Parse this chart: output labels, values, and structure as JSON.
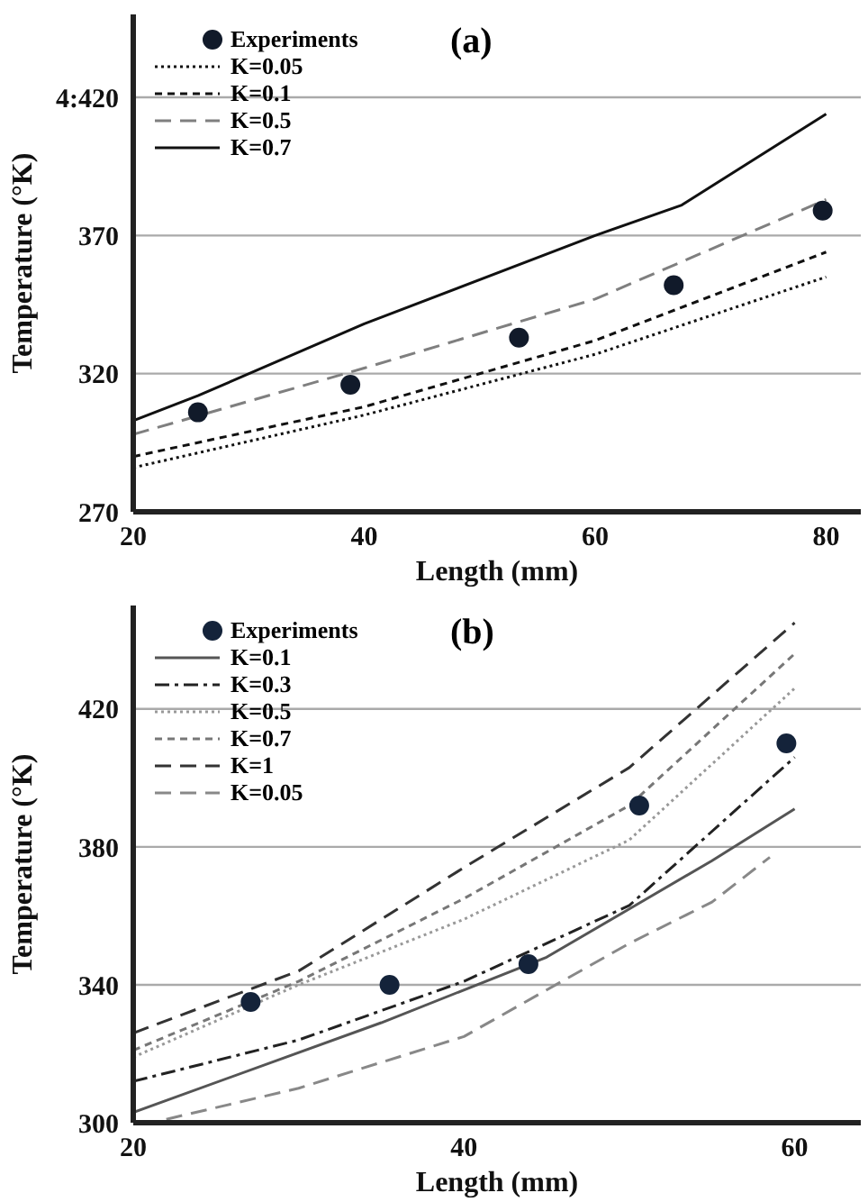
{
  "chart_data": [
    {
      "type": "line",
      "title": "(a)",
      "xlabel": "Length (mm)",
      "ylabel": "Temperature (°K)",
      "xlim": [
        20,
        83
      ],
      "ylim": [
        270,
        450
      ],
      "xticks": [
        20,
        40,
        60,
        80
      ],
      "yticks": [
        270,
        320,
        370,
        {
          "value": 420,
          "label": "4:420"
        }
      ],
      "grid": "y",
      "legend": "top left",
      "series": [
        {
          "name": "Experiments",
          "type": "scatter",
          "marker": "circle",
          "color": "#111a2a",
          "x": [
            25.6,
            38.8,
            53.4,
            66.8,
            79.7
          ],
          "values": [
            306,
            316,
            333,
            352,
            379
          ]
        },
        {
          "name": "K=0.05",
          "line_style": "dotted",
          "color": "#111111",
          "x": [
            20,
            40,
            60,
            80
          ],
          "values": [
            286,
            305,
            327,
            355
          ]
        },
        {
          "name": "K=0.1",
          "line_style": "dashed",
          "color": "#111111",
          "x": [
            20,
            40,
            60,
            80
          ],
          "values": [
            290,
            308,
            332,
            364
          ]
        },
        {
          "name": "K=0.5",
          "line_style": "longdashed",
          "color": "#7f7f7f",
          "x": [
            20,
            40,
            60,
            80
          ],
          "values": [
            298,
            322,
            347,
            383
          ]
        },
        {
          "name": "K=0.7",
          "line_style": "solid",
          "color": "#111111",
          "x": [
            20,
            25.6,
            40,
            60,
            67.5,
            80
          ],
          "values": [
            303,
            312,
            338,
            370,
            381,
            414
          ]
        }
      ]
    },
    {
      "type": "line",
      "title": "(b)",
      "xlabel": "Length (mm)",
      "ylabel": "Temperature (°K)",
      "xlim": [
        20,
        64
      ],
      "ylim": [
        300,
        450
      ],
      "xticks": [
        20,
        40,
        60
      ],
      "yticks": [
        300,
        340,
        380,
        420
      ],
      "grid": "y",
      "legend": "top left",
      "series": [
        {
          "name": "Experiments",
          "type": "scatter",
          "marker": "circle",
          "color": "#14233a",
          "x": [
            27.1,
            35.5,
            43.9,
            50.6,
            59.5
          ],
          "values": [
            335,
            340,
            346,
            392,
            410
          ]
        },
        {
          "name": "K=0.1",
          "line_style": "solid",
          "color": "#555555",
          "x": [
            20,
            35,
            45,
            50,
            55,
            60
          ],
          "values": [
            303,
            329,
            348,
            362,
            376,
            391
          ]
        },
        {
          "name": "K=0.3",
          "line_style": "dashdot",
          "color": "#222222",
          "x": [
            20,
            30,
            40,
            50,
            60
          ],
          "values": [
            312,
            324,
            341,
            363,
            406
          ]
        },
        {
          "name": "K=0.5",
          "line_style": "dotted",
          "color": "#999999",
          "x": [
            20,
            30,
            40,
            50,
            60
          ],
          "values": [
            319,
            340,
            359,
            382,
            426
          ]
        },
        {
          "name": "K=0.7",
          "line_style": "dashed",
          "color": "#777777",
          "x": [
            20,
            30,
            40,
            50,
            60
          ],
          "values": [
            321,
            341,
            365,
            392,
            436
          ]
        },
        {
          "name": "K=1",
          "line_style": "longdashed",
          "color": "#333333",
          "x": [
            20,
            30,
            40,
            50,
            60
          ],
          "values": [
            326,
            344,
            374,
            403,
            445
          ]
        },
        {
          "name": "K=0.05",
          "line_style": "longdashed",
          "color": "#888888",
          "x": [
            22,
            30,
            40,
            50,
            55,
            58.5
          ],
          "values": [
            301,
            310,
            325,
            352,
            364,
            377
          ]
        }
      ]
    }
  ]
}
